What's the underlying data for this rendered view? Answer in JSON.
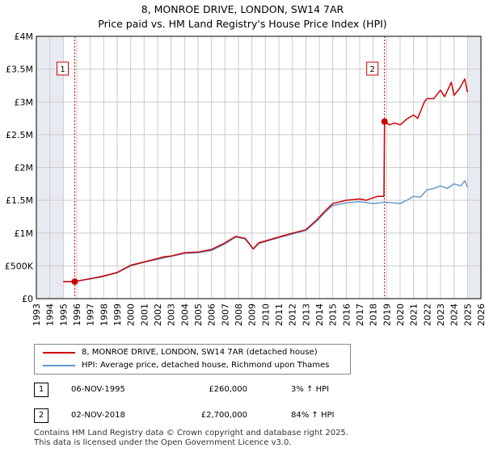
{
  "title_line1": "8, MONROE DRIVE, LONDON, SW14 7AR",
  "title_line2": "Price paid vs. HM Land Registry's House Price Index (HPI)",
  "colors": {
    "property": "#cc0000",
    "hpi": "#6699cc",
    "grid": "#cccccc",
    "shade": "#e8eaf2",
    "marker_line": "#cc0000"
  },
  "chart_data": {
    "type": "line",
    "title": "8, MONROE DRIVE, LONDON, SW14 7AR — Price paid vs. HM Land Registry's House Price Index (HPI)",
    "xlabel": "",
    "ylabel": "",
    "xlim": [
      1993,
      2026
    ],
    "ylim": [
      0,
      4000000
    ],
    "x_ticks": [
      "1993",
      "1994",
      "1995",
      "1996",
      "1997",
      "1998",
      "1999",
      "2000",
      "2001",
      "2002",
      "2003",
      "2004",
      "2005",
      "2006",
      "2007",
      "2008",
      "2009",
      "2010",
      "2011",
      "2012",
      "2013",
      "2014",
      "2015",
      "2016",
      "2017",
      "2018",
      "2019",
      "2020",
      "2021",
      "2022",
      "2023",
      "2024",
      "2025",
      "2026"
    ],
    "y_ticks": [
      {
        "value": 0,
        "label": "£0"
      },
      {
        "value": 500000,
        "label": "£500K"
      },
      {
        "value": 1000000,
        "label": "£1M"
      },
      {
        "value": 1500000,
        "label": "£1.5M"
      },
      {
        "value": 2000000,
        "label": "£2M"
      },
      {
        "value": 2500000,
        "label": "£2.5M"
      },
      {
        "value": 3000000,
        "label": "£3M"
      },
      {
        "value": 3500000,
        "label": "£3.5M"
      },
      {
        "value": 4000000,
        "label": "£4M"
      }
    ],
    "shaded_ranges": [
      [
        1993,
        1995.0
      ],
      [
        2025.0,
        2026
      ]
    ],
    "series": [
      {
        "name": "8, MONROE DRIVE, LONDON, SW14 7AR (detached house)",
        "color": "#cc0000",
        "x": [
          1995.0,
          1995.5,
          1995.85,
          1996.5,
          1997,
          1998,
          1999,
          2000,
          2001,
          2002,
          2002.5,
          2003,
          2004,
          2005,
          2006,
          2007,
          2007.8,
          2008.5,
          2009.1,
          2009.5,
          2010,
          2011,
          2012,
          2013,
          2013.8,
          2014.5,
          2015,
          2016,
          2017,
          2017.5,
          2018.3,
          2018.8,
          2018.84,
          2019.2,
          2019.6,
          2020,
          2020.5,
          2021,
          2021.3,
          2021.8,
          2022,
          2022.5,
          2023,
          2023.3,
          2023.8,
          2024,
          2024.4,
          2024.8,
          2025.0
        ],
        "y": [
          262000,
          258000,
          260000,
          285000,
          305000,
          345000,
          400000,
          510000,
          560000,
          610000,
          640000,
          650000,
          700000,
          710000,
          750000,
          850000,
          950000,
          920000,
          760000,
          850000,
          880000,
          940000,
          1000000,
          1050000,
          1200000,
          1350000,
          1450000,
          1500000,
          1520000,
          1500000,
          1560000,
          1560000,
          2700000,
          2650000,
          2680000,
          2650000,
          2740000,
          2800000,
          2750000,
          3000000,
          3050000,
          3050000,
          3180000,
          3080000,
          3300000,
          3100000,
          3200000,
          3350000,
          3150000
        ]
      },
      {
        "name": "HPI: Average price, detached house, Richmond upon Thames",
        "color": "#6699cc",
        "x": [
          1995.0,
          1996,
          1997,
          1998,
          1999,
          2000,
          2001,
          2002,
          2003,
          2004,
          2005,
          2006,
          2007,
          2007.8,
          2008.5,
          2009.1,
          2009.5,
          2010,
          2011,
          2012,
          2013,
          2013.8,
          2014.5,
          2015,
          2016,
          2017,
          2018,
          2018.84,
          2019.5,
          2020,
          2020.5,
          2021,
          2021.5,
          2022,
          2022.5,
          2023,
          2023.5,
          2024,
          2024.5,
          2024.8,
          2025.0
        ],
        "y": [
          255000,
          270000,
          300000,
          340000,
          395000,
          500000,
          555000,
          600000,
          645000,
          690000,
          700000,
          735000,
          835000,
          940000,
          910000,
          755000,
          840000,
          870000,
          930000,
          985000,
          1040000,
          1180000,
          1330000,
          1420000,
          1460000,
          1480000,
          1450000,
          1470000,
          1460000,
          1450000,
          1500000,
          1560000,
          1550000,
          1660000,
          1680000,
          1720000,
          1680000,
          1750000,
          1720000,
          1800000,
          1700000
        ]
      }
    ],
    "annotations": [
      {
        "label": "1",
        "x": 1995.85
      },
      {
        "label": "2",
        "x": 2018.84
      }
    ]
  },
  "legend": {
    "property_label": "8, MONROE DRIVE, LONDON, SW14 7AR (detached house)",
    "hpi_label": "HPI: Average price, detached house, Richmond upon Thames"
  },
  "sales": [
    {
      "num": "1",
      "date": "06-NOV-1995",
      "price": "£260,000",
      "hpi": "3% ↑ HPI"
    },
    {
      "num": "2",
      "date": "02-NOV-2018",
      "price": "£2,700,000",
      "hpi": "84% ↑ HPI"
    }
  ],
  "footer": {
    "line1": "Contains HM Land Registry data © Crown copyright and database right 2025.",
    "line2": "This data is licensed under the Open Government Licence v3.0."
  }
}
